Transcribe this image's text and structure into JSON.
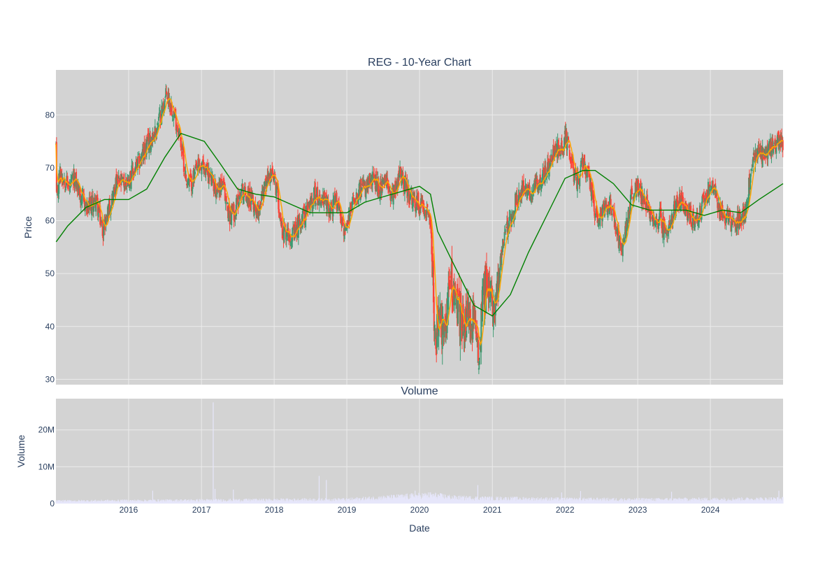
{
  "colors": {
    "plot_bg": "#d3d3d3",
    "grid": "#ebebeb",
    "text": "#2a3f5f",
    "candle_up": "#3d9970",
    "candle_down": "#ff4136",
    "ma_short": "#ffa500",
    "ma_long": "#008000",
    "volume_bar": "#e6e6fa"
  },
  "chart_data": [
    {
      "type": "candlestick",
      "title": "REG - 10-Year Chart",
      "ylabel": "Price",
      "xlim": [
        "2015-01-01",
        "2024-12-31"
      ],
      "ylim": [
        29,
        88.5
      ],
      "y_ticks": [
        30,
        40,
        50,
        60,
        70,
        80
      ],
      "grid": true,
      "price_path": [
        [
          "2015-01-02",
          63
        ],
        [
          "2015-01-20",
          69
        ],
        [
          "2015-02-15",
          68
        ],
        [
          "2015-03-10",
          66
        ],
        [
          "2015-04-05",
          68
        ],
        [
          "2015-05-01",
          65
        ],
        [
          "2015-06-10",
          62
        ],
        [
          "2015-07-20",
          64
        ],
        [
          "2015-08-25",
          58
        ],
        [
          "2015-09-20",
          62
        ],
        [
          "2015-11-01",
          67
        ],
        [
          "2015-12-15",
          67
        ],
        [
          "2016-02-10",
          70
        ],
        [
          "2016-04-01",
          74
        ],
        [
          "2016-05-15",
          77
        ],
        [
          "2016-06-10",
          80
        ],
        [
          "2016-07-10",
          84
        ],
        [
          "2016-08-10",
          81
        ],
        [
          "2016-09-15",
          76
        ],
        [
          "2016-10-15",
          68
        ],
        [
          "2016-11-10",
          67
        ],
        [
          "2016-12-15",
          70
        ],
        [
          "2017-01-20",
          70
        ],
        [
          "2017-02-15",
          68
        ],
        [
          "2017-03-15",
          66
        ],
        [
          "2017-04-15",
          67
        ],
        [
          "2017-05-20",
          61
        ],
        [
          "2017-06-20",
          62
        ],
        [
          "2017-07-20",
          66
        ],
        [
          "2017-09-01",
          64
        ],
        [
          "2017-10-10",
          62
        ],
        [
          "2017-11-10",
          66
        ],
        [
          "2017-12-15",
          69
        ],
        [
          "2018-01-15",
          66
        ],
        [
          "2018-02-10",
          58
        ],
        [
          "2018-03-10",
          58
        ],
        [
          "2018-04-10",
          57
        ],
        [
          "2018-05-10",
          60
        ],
        [
          "2018-06-20",
          62
        ],
        [
          "2018-07-20",
          65
        ],
        [
          "2018-09-01",
          64
        ],
        [
          "2018-10-10",
          62
        ],
        [
          "2018-11-15",
          64
        ],
        [
          "2018-12-24",
          57
        ],
        [
          "2019-01-31",
          64
        ],
        [
          "2019-03-01",
          66
        ],
        [
          "2019-04-15",
          66
        ],
        [
          "2019-05-15",
          68
        ],
        [
          "2019-06-15",
          66
        ],
        [
          "2019-07-20",
          67
        ],
        [
          "2019-08-15",
          65
        ],
        [
          "2019-10-01",
          69
        ],
        [
          "2019-11-15",
          64
        ],
        [
          "2019-12-20",
          63
        ],
        [
          "2020-01-15",
          63
        ],
        [
          "2020-02-20",
          62
        ],
        [
          "2020-03-05",
          52
        ],
        [
          "2020-03-20",
          36
        ],
        [
          "2020-04-10",
          42
        ],
        [
          "2020-05-01",
          38
        ],
        [
          "2020-06-08",
          50
        ],
        [
          "2020-07-01",
          44
        ],
        [
          "2020-08-01",
          41
        ],
        [
          "2020-09-01",
          41
        ],
        [
          "2020-10-01",
          40
        ],
        [
          "2020-10-28",
          35
        ],
        [
          "2020-11-10",
          47
        ],
        [
          "2020-12-01",
          47
        ],
        [
          "2021-01-01",
          45
        ],
        [
          "2021-02-01",
          49
        ],
        [
          "2021-03-01",
          57
        ],
        [
          "2021-04-01",
          60
        ],
        [
          "2021-05-01",
          64
        ],
        [
          "2021-06-01",
          66
        ],
        [
          "2021-07-01",
          65
        ],
        [
          "2021-08-01",
          66
        ],
        [
          "2021-09-01",
          68
        ],
        [
          "2021-10-15",
          70
        ],
        [
          "2021-11-15",
          74
        ],
        [
          "2021-12-15",
          73
        ],
        [
          "2022-01-05",
          76
        ],
        [
          "2022-02-01",
          71
        ],
        [
          "2022-03-01",
          67
        ],
        [
          "2022-04-01",
          71
        ],
        [
          "2022-05-01",
          68
        ],
        [
          "2022-06-15",
          59
        ],
        [
          "2022-07-15",
          62
        ],
        [
          "2022-08-15",
          63
        ],
        [
          "2022-09-20",
          58
        ],
        [
          "2022-10-10",
          54
        ],
        [
          "2022-11-01",
          58
        ],
        [
          "2022-12-01",
          65
        ],
        [
          "2023-01-15",
          66
        ],
        [
          "2023-02-15",
          63
        ],
        [
          "2023-03-20",
          59
        ],
        [
          "2023-04-20",
          61
        ],
        [
          "2023-05-15",
          58
        ],
        [
          "2023-06-15",
          60
        ],
        [
          "2023-07-20",
          64
        ],
        [
          "2023-08-20",
          63
        ],
        [
          "2023-10-01",
          60
        ],
        [
          "2023-11-01",
          61
        ],
        [
          "2023-12-20",
          66
        ],
        [
          "2024-01-15",
          66
        ],
        [
          "2024-02-15",
          62
        ],
        [
          "2024-03-20",
          61
        ],
        [
          "2024-04-20",
          59
        ],
        [
          "2024-05-20",
          60
        ],
        [
          "2024-06-20",
          61
        ],
        [
          "2024-07-25",
          70
        ],
        [
          "2024-08-20",
          73
        ],
        [
          "2024-09-15",
          72
        ],
        [
          "2024-10-15",
          73
        ],
        [
          "2024-11-20",
          75
        ],
        [
          "2024-12-31",
          74
        ]
      ],
      "series": [
        {
          "type": "line",
          "color": "#008000",
          "x": [
            "2015-01-02",
            "2015-03-01",
            "2015-06-01",
            "2015-09-01",
            "2016-01-01",
            "2016-04-01",
            "2016-07-01",
            "2016-09-20",
            "2017-01-15",
            "2017-04-01",
            "2017-07-01",
            "2017-10-01",
            "2018-01-01",
            "2018-04-01",
            "2018-07-01",
            "2018-10-01",
            "2019-01-01",
            "2019-04-01",
            "2019-07-01",
            "2019-10-01",
            "2020-01-01",
            "2020-02-25",
            "2020-04-01",
            "2020-07-01",
            "2020-10-01",
            "2021-01-01",
            "2021-04-01",
            "2021-07-01",
            "2021-10-01",
            "2022-01-01",
            "2022-04-01",
            "2022-06-01",
            "2022-09-01",
            "2022-12-01",
            "2023-03-01",
            "2023-06-01",
            "2023-09-01",
            "2023-12-01",
            "2024-03-01",
            "2024-06-01",
            "2024-09-01",
            "2024-12-31"
          ],
          "y": [
            56,
            59,
            62.5,
            64,
            64,
            66,
            72,
            76.5,
            75,
            71,
            66,
            65,
            64.5,
            63,
            61.5,
            61.5,
            61.5,
            63.5,
            64.5,
            65.5,
            66.5,
            65,
            58,
            51,
            44,
            42,
            46,
            54,
            61,
            68,
            69.5,
            69.5,
            67,
            63,
            62,
            62,
            62,
            61,
            62,
            61.5,
            64,
            67
          ]
        }
      ]
    },
    {
      "type": "bar",
      "title": "Volume",
      "xlabel": "Date",
      "ylabel": "Volume",
      "ylim": [
        0,
        28500000
      ],
      "y_ticks": [
        "0",
        "10M",
        "20M"
      ],
      "x_ticks": [
        "2016",
        "2017",
        "2018",
        "2019",
        "2020",
        "2021",
        "2022",
        "2023",
        "2024"
      ],
      "base_level": [
        [
          "2015-01-01",
          700000
        ],
        [
          "2016-01-01",
          800000
        ],
        [
          "2017-01-01",
          900000
        ],
        [
          "2018-01-01",
          1000000
        ],
        [
          "2019-01-01",
          1100000
        ],
        [
          "2020-03-01",
          2300000
        ],
        [
          "2020-07-01",
          1600000
        ],
        [
          "2021-01-01",
          1400000
        ],
        [
          "2022-01-01",
          1200000
        ],
        [
          "2023-01-01",
          1100000
        ],
        [
          "2024-01-01",
          1200000
        ],
        [
          "2024-12-31",
          1300000
        ]
      ],
      "spikes": [
        [
          "2017-03-01",
          27500000
        ],
        [
          "2017-03-10",
          4000000
        ],
        [
          "2018-08-15",
          7500000
        ],
        [
          "2018-09-20",
          6400000
        ],
        [
          "2020-10-20",
          5000000
        ],
        [
          "2019-12-10",
          3500000
        ],
        [
          "2023-06-20",
          3200000
        ],
        [
          "2021-12-15",
          3000000
        ],
        [
          "2016-05-01",
          3500000
        ],
        [
          "2017-06-10",
          3800000
        ],
        [
          "2022-03-20",
          3400000
        ],
        [
          "2024-12-10",
          3500000
        ]
      ]
    }
  ]
}
